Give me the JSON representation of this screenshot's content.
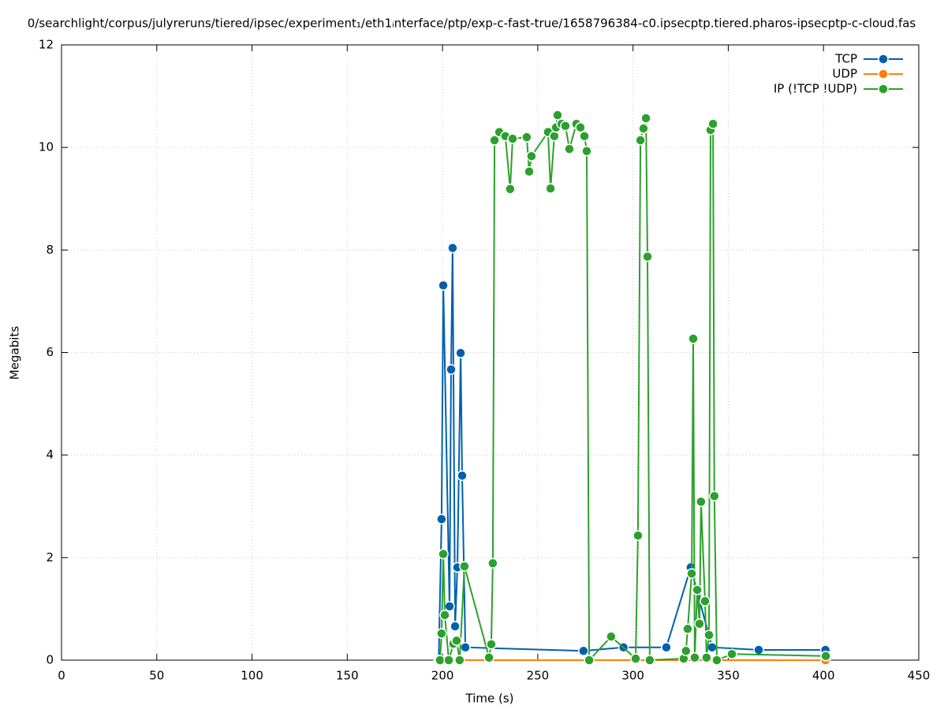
{
  "chart_data": {
    "type": "line",
    "title": "0/searchlight/corpus/julyreruns/tiered/ipsec/experiment₁/eth1ᵢnterface/ptp/exp-c-fast-true/1658796384-c0.ipsecptp.tiered.pharos-ipsecptp-c-cloud.fas",
    "x_label": "Time (s)",
    "y_label": "Megabits",
    "xlim": [
      0,
      450
    ],
    "ylim": [
      0,
      12
    ],
    "xticks": [
      0,
      50,
      100,
      150,
      200,
      250,
      300,
      350,
      400,
      450
    ],
    "yticks": [
      0,
      2,
      4,
      6,
      8,
      10,
      12
    ],
    "grid": true,
    "legend_position": "top-right",
    "series": [
      {
        "name": "TCP",
        "color": "#0060ad",
        "x": [
          198,
          199.5,
          200.4,
          203.7,
          204.5,
          205.3,
          206.6,
          207.8,
          209.5,
          210.3,
          212,
          274,
          295,
          317.5,
          330.3,
          341.5,
          366,
          401
        ],
        "values": [
          0,
          2.75,
          7.31,
          1.05,
          5.67,
          8.04,
          0.66,
          1.81,
          5.99,
          3.6,
          0.25,
          0.18,
          0.25,
          0.25,
          1.81,
          0.25,
          0.2,
          0.2
        ]
      },
      {
        "name": "UDP",
        "color": "#ff7f0e",
        "x": [
          198,
          401
        ],
        "values": [
          0,
          0
        ]
      },
      {
        "name": "IP (!TCP  !UDP)",
        "color": "#2ca02c",
        "x": [
          198.7,
          199.5,
          200.4,
          201.2,
          203.3,
          205.7,
          207.4,
          209,
          211.5,
          224.4,
          225.6,
          226.4,
          227.3,
          229.8,
          233,
          235.5,
          236.8,
          244.2,
          245.5,
          246.7,
          255.4,
          256.7,
          258.7,
          259.6,
          260.4,
          262.5,
          264.5,
          266.6,
          270.3,
          272.4,
          274.5,
          275.7,
          277,
          288.5,
          301.4,
          302.6,
          303.9,
          305.5,
          306.8,
          307.6,
          308.8,
          326.6,
          327.8,
          328.7,
          330.8,
          331.6,
          332.4,
          333.7,
          334.9,
          335.7,
          337.8,
          338.6,
          339.9,
          340.7,
          342,
          342.7,
          344,
          351.9,
          401.2
        ],
        "values": [
          0,
          0.52,
          2.07,
          0.88,
          0,
          0.32,
          0.38,
          0,
          1.83,
          0.05,
          0.31,
          1.89,
          10.14,
          10.3,
          10.22,
          9.19,
          10.17,
          10.2,
          9.53,
          9.83,
          10.3,
          9.2,
          10.22,
          10.39,
          10.63,
          10.46,
          10.42,
          9.97,
          10.46,
          10.39,
          10.22,
          9.93,
          0,
          0.46,
          0.03,
          2.43,
          10.14,
          10.37,
          10.57,
          7.87,
          0,
          0.03,
          0.18,
          0.61,
          1.69,
          6.27,
          0.05,
          1.37,
          0.71,
          3.09,
          1.15,
          0.05,
          0.49,
          10.34,
          10.46,
          3.2,
          0,
          0.12,
          0.08
        ]
      }
    ]
  }
}
